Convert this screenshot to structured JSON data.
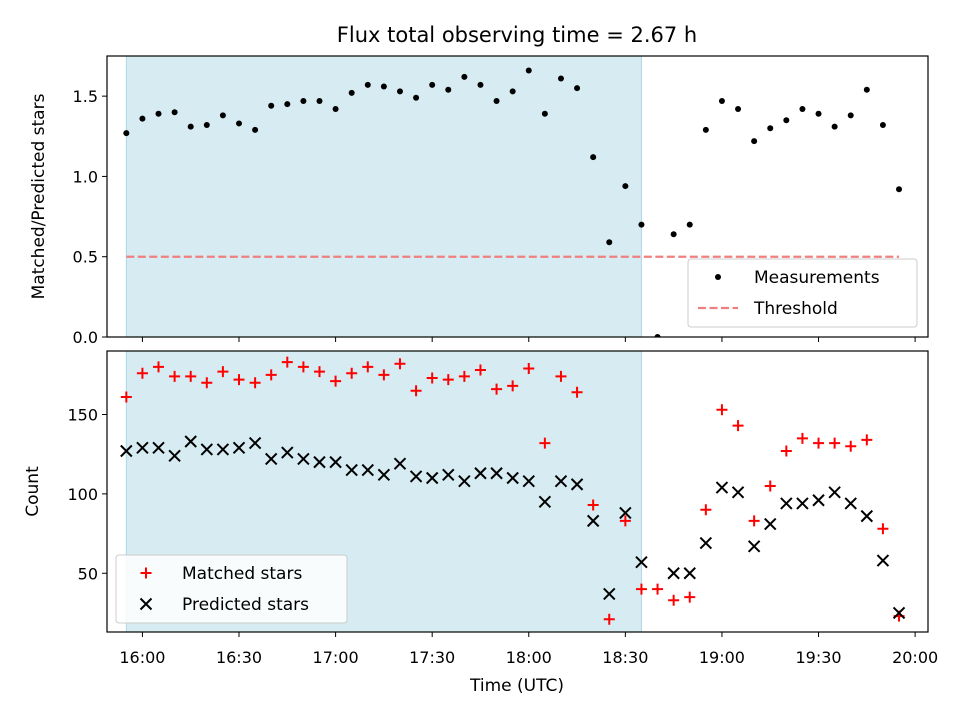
{
  "figure": {
    "title": "Flux total observing time = 2.67 h",
    "xlabel": "Time (UTC)",
    "x_ticks": [
      "16:00",
      "16:30",
      "17:00",
      "17:30",
      "18:00",
      "18:30",
      "19:00",
      "19:30",
      "20:00"
    ]
  },
  "chart_data": [
    {
      "type": "scatter",
      "ylabel": "Matched/Predicted stars",
      "xlim": [
        "15:49",
        "20:04"
      ],
      "ylim": [
        0,
        1.75
      ],
      "y_ticks": [
        0.0,
        0.5,
        1.0,
        1.5
      ],
      "shaded_region": {
        "x_start": "15:55",
        "x_end": "18:35",
        "color": "#add8e6"
      },
      "legend_position": "lower-right",
      "series": [
        {
          "name": "Measurements",
          "marker": "dot",
          "color": "#000000",
          "x": [
            "15:55",
            "16:00",
            "16:05",
            "16:10",
            "16:15",
            "16:20",
            "16:25",
            "16:30",
            "16:35",
            "16:40",
            "16:45",
            "16:50",
            "16:55",
            "17:00",
            "17:05",
            "17:10",
            "17:15",
            "17:20",
            "17:25",
            "17:30",
            "17:35",
            "17:40",
            "17:45",
            "17:50",
            "17:55",
            "18:00",
            "18:05",
            "18:10",
            "18:15",
            "18:20",
            "18:25",
            "18:30",
            "18:35",
            "18:40",
            "18:45",
            "18:50",
            "18:55",
            "19:00",
            "19:05",
            "19:10",
            "19:15",
            "19:20",
            "19:25",
            "19:30",
            "19:35",
            "19:40",
            "19:45",
            "19:50",
            "19:55"
          ],
          "y": [
            1.27,
            1.36,
            1.39,
            1.4,
            1.31,
            1.32,
            1.38,
            1.33,
            1.29,
            1.44,
            1.45,
            1.47,
            1.47,
            1.42,
            1.52,
            1.57,
            1.56,
            1.53,
            1.49,
            1.57,
            1.54,
            1.62,
            1.57,
            1.47,
            1.53,
            1.66,
            1.39,
            1.61,
            1.55,
            1.12,
            0.59,
            0.94,
            0.7,
            0.0,
            0.64,
            0.7,
            1.29,
            1.47,
            1.42,
            1.22,
            1.3,
            1.35,
            1.42,
            1.39,
            1.31,
            1.38,
            1.54,
            1.32,
            0.92
          ]
        },
        {
          "name": "Threshold",
          "style": "dashed",
          "color": "#f08080",
          "x": [
            "15:55",
            "19:55"
          ],
          "y": [
            0.5,
            0.5
          ]
        }
      ]
    },
    {
      "type": "scatter",
      "ylabel": "Count",
      "xlim": [
        "15:49",
        "20:04"
      ],
      "ylim": [
        13,
        190
      ],
      "y_ticks": [
        50,
        100,
        150
      ],
      "shaded_region": {
        "x_start": "15:55",
        "x_end": "18:35",
        "color": "#add8e6"
      },
      "legend_position": "lower-left",
      "series": [
        {
          "name": "Matched stars",
          "marker": "plus",
          "color": "#ff0000",
          "x": [
            "15:55",
            "16:00",
            "16:05",
            "16:10",
            "16:15",
            "16:20",
            "16:25",
            "16:30",
            "16:35",
            "16:40",
            "16:45",
            "16:50",
            "16:55",
            "17:00",
            "17:05",
            "17:10",
            "17:15",
            "17:20",
            "17:25",
            "17:30",
            "17:35",
            "17:40",
            "17:45",
            "17:50",
            "17:55",
            "18:00",
            "18:05",
            "18:10",
            "18:15",
            "18:20",
            "18:25",
            "18:30",
            "18:35",
            "18:40",
            "18:45",
            "18:50",
            "18:55",
            "19:00",
            "19:05",
            "19:10",
            "19:15",
            "19:20",
            "19:25",
            "19:30",
            "19:35",
            "19:40",
            "19:45",
            "19:50",
            "19:55"
          ],
          "y": [
            161,
            176,
            180,
            174,
            174,
            170,
            177,
            172,
            170,
            175,
            183,
            180,
            177,
            171,
            176,
            180,
            175,
            182,
            165,
            173,
            172,
            174,
            178,
            166,
            168,
            179,
            132,
            174,
            164,
            93,
            21,
            83,
            40,
            40,
            33,
            35,
            90,
            153,
            143,
            83,
            105,
            127,
            135,
            132,
            132,
            130,
            134,
            78,
            23
          ]
        },
        {
          "name": "Predicted stars",
          "marker": "x",
          "color": "#000000",
          "x": [
            "15:55",
            "16:00",
            "16:05",
            "16:10",
            "16:15",
            "16:20",
            "16:25",
            "16:30",
            "16:35",
            "16:40",
            "16:45",
            "16:50",
            "16:55",
            "17:00",
            "17:05",
            "17:10",
            "17:15",
            "17:20",
            "17:25",
            "17:30",
            "17:35",
            "17:40",
            "17:45",
            "17:50",
            "17:55",
            "18:00",
            "18:05",
            "18:10",
            "18:15",
            "18:20",
            "18:25",
            "18:30",
            "18:35",
            "18:40",
            "18:45",
            "18:50",
            "18:55",
            "19:00",
            "19:05",
            "19:10",
            "19:15",
            "19:20",
            "19:25",
            "19:30",
            "19:35",
            "19:40",
            "19:45",
            "19:50",
            "19:55"
          ],
          "y": [
            127,
            129,
            129,
            124,
            133,
            128,
            128,
            129,
            132,
            122,
            126,
            122,
            120,
            120,
            115,
            115,
            112,
            119,
            111,
            110,
            112,
            108,
            113,
            113,
            110,
            108,
            95,
            108,
            106,
            83,
            37,
            88,
            57,
            null,
            50,
            50,
            69,
            104,
            101,
            67,
            81,
            94,
            94,
            96,
            101,
            94,
            86,
            58,
            25
          ]
        }
      ]
    }
  ]
}
